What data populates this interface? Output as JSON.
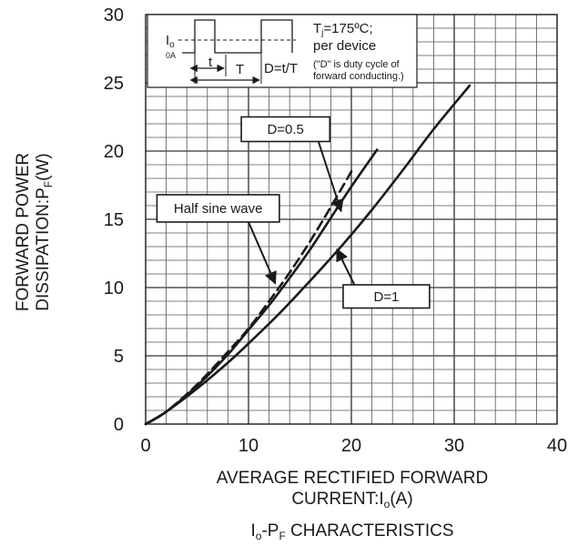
{
  "chart_data": {
    "type": "line",
    "title": "",
    "caption": {
      "main": "I",
      "sub": "o",
      "mid": "-P",
      "sub2": "F",
      "rest": " CHARACTERISTICS"
    },
    "xlabel": {
      "line1": "AVERAGE RECTIFIED FORWARD",
      "line2_prefix": "CURRENT:I",
      "line2_sub": "o",
      "line2_suffix": "(A)"
    },
    "ylabel": {
      "line1": "FORWARD POWER",
      "line2_prefix": "DISSIPATION:P",
      "line2_sub": "F",
      "line2_suffix": "(W)"
    },
    "xlim": [
      0,
      40
    ],
    "ylim": [
      0,
      30
    ],
    "x_ticks": [
      "0",
      "10",
      "20",
      "30",
      "40"
    ],
    "y_ticks": [
      "0",
      "5",
      "10",
      "15",
      "20",
      "25",
      "30"
    ],
    "grid": true,
    "series": [
      {
        "name": "D=1",
        "style": "solid",
        "x": [
          0,
          2,
          5,
          8,
          10,
          13,
          16,
          19,
          22,
          25,
          28,
          31.5
        ],
        "y": [
          0,
          0.9,
          2.6,
          4.5,
          5.9,
          8.1,
          10.5,
          13.0,
          15.7,
          18.6,
          21.6,
          24.8
        ]
      },
      {
        "name": "D=0.5",
        "style": "solid",
        "x": [
          0,
          2,
          5,
          8,
          10,
          12,
          14,
          16,
          18,
          20,
          22.5
        ],
        "y": [
          0,
          0.9,
          2.8,
          5.1,
          6.9,
          8.7,
          10.7,
          12.8,
          15.1,
          17.4,
          20.1
        ]
      },
      {
        "name": "Half sine wave",
        "style": "dashed",
        "x": [
          0,
          2,
          5,
          8,
          10,
          12,
          14,
          16,
          18,
          20
        ],
        "y": [
          0,
          0.9,
          2.9,
          5.3,
          7.0,
          9.0,
          11.1,
          13.4,
          15.9,
          18.5
        ]
      }
    ],
    "callouts": [
      {
        "label": "D=0.5",
        "series": "D=0.5",
        "box_x": [
          9.3,
          17.9
        ],
        "box_y": [
          20.7,
          22.5
        ],
        "arrow_from": [
          16.8,
          20.7
        ],
        "arrow_to": [
          19.0,
          15.6
        ]
      },
      {
        "label": "Half sine wave",
        "series": "Half sine wave",
        "box_x": [
          1.1,
          13.0
        ],
        "box_y": [
          14.8,
          16.8
        ],
        "arrow_from": [
          10.0,
          14.8
        ],
        "arrow_to": [
          12.6,
          10.3
        ]
      },
      {
        "label": "D=1",
        "series": "D=1",
        "box_x": [
          19.2,
          27.6
        ],
        "box_y": [
          8.5,
          10.2
        ],
        "arrow_from": [
          20.3,
          10.2
        ],
        "arrow_to": [
          18.6,
          12.8
        ]
      }
    ],
    "conditions_box": {
      "tj_prefix": "T",
      "tj_sub": "j",
      "tj_suffix": "=175ºC;",
      "per_device": "per device",
      "note_line1": "(\"D\" is duty cycle of",
      "note_line2": "forward conducting.)",
      "io_label": "I",
      "io_sub": "o",
      "zero_label": "0A",
      "t_label": "t",
      "T_label": "T",
      "d_formula": "D=t/T"
    },
    "colors": {
      "line": "#1a1a1a",
      "grid": "#555555",
      "background": "#ffffff"
    }
  }
}
